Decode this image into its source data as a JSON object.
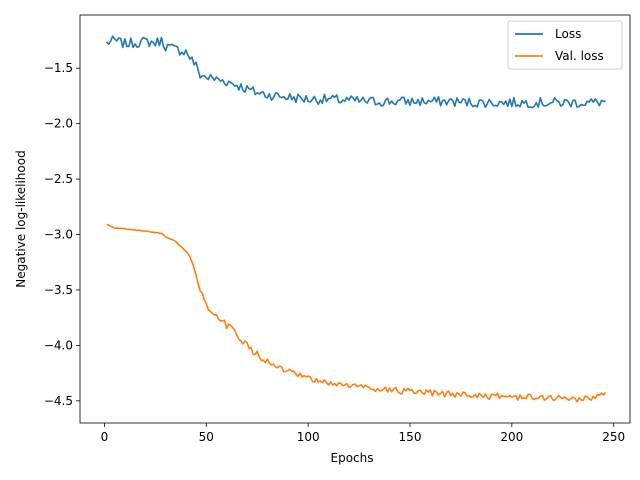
{
  "chart_data": {
    "type": "line",
    "xlabel": "Epochs",
    "ylabel": "Negative log-likelihood",
    "xlim": [
      -12,
      258
    ],
    "ylim": [
      -4.7,
      -1.02
    ],
    "xticks": [
      0,
      50,
      100,
      150,
      200,
      250
    ],
    "yticks": [
      -1.5,
      -2.0,
      -2.5,
      -3.0,
      -3.5,
      -4.0,
      -4.5
    ],
    "ytick_labels": [
      "−1.5",
      "−2.0",
      "−2.5",
      "−3.0",
      "−3.5",
      "−4.0",
      "−4.5"
    ],
    "legend": "top-right",
    "grid": false,
    "series": [
      {
        "name": "Loss",
        "color": "#1f77b4",
        "x": [
          1,
          5,
          10,
          15,
          20,
          25,
          28,
          30,
          35,
          40,
          42,
          45,
          47,
          50,
          55,
          60,
          65,
          70,
          75,
          80,
          85,
          90,
          95,
          100,
          110,
          120,
          130,
          140,
          150,
          160,
          170,
          180,
          190,
          200,
          210,
          220,
          230,
          240,
          246
        ],
        "y": [
          -1.27,
          -1.25,
          -1.28,
          -1.27,
          -1.26,
          -1.27,
          -1.25,
          -1.3,
          -1.33,
          -1.35,
          -1.4,
          -1.48,
          -1.56,
          -1.58,
          -1.6,
          -1.62,
          -1.65,
          -1.69,
          -1.72,
          -1.74,
          -1.75,
          -1.76,
          -1.77,
          -1.78,
          -1.78,
          -1.79,
          -1.8,
          -1.8,
          -1.8,
          -1.8,
          -1.8,
          -1.81,
          -1.81,
          -1.81,
          -1.81,
          -1.81,
          -1.81,
          -1.81,
          -1.8
        ]
      },
      {
        "name": "Val. loss",
        "color": "#ff7f0e",
        "x": [
          1,
          5,
          10,
          15,
          20,
          25,
          28,
          30,
          33,
          36,
          40,
          42,
          44,
          46,
          48,
          50,
          52,
          55,
          58,
          60,
          63,
          65,
          68,
          70,
          72,
          75,
          78,
          80,
          85,
          90,
          95,
          100,
          105,
          110,
          115,
          120,
          125,
          130,
          135,
          140,
          145,
          150,
          155,
          160,
          165,
          170,
          175,
          180,
          185,
          190,
          195,
          200,
          205,
          210,
          215,
          220,
          225,
          230,
          235,
          240,
          243,
          246
        ],
        "y": [
          -2.91,
          -2.94,
          -2.95,
          -2.96,
          -2.97,
          -2.98,
          -2.99,
          -3.02,
          -3.04,
          -3.08,
          -3.15,
          -3.2,
          -3.3,
          -3.45,
          -3.55,
          -3.65,
          -3.72,
          -3.74,
          -3.78,
          -3.82,
          -3.86,
          -3.9,
          -3.96,
          -4.0,
          -4.05,
          -4.08,
          -4.12,
          -4.15,
          -4.2,
          -4.24,
          -4.27,
          -4.3,
          -4.33,
          -4.34,
          -4.35,
          -4.36,
          -4.37,
          -4.38,
          -4.39,
          -4.4,
          -4.41,
          -4.42,
          -4.43,
          -4.43,
          -4.44,
          -4.44,
          -4.44,
          -4.45,
          -4.45,
          -4.46,
          -4.46,
          -4.46,
          -4.47,
          -4.47,
          -4.47,
          -4.47,
          -4.48,
          -4.48,
          -4.48,
          -4.48,
          -4.45,
          -4.44
        ]
      }
    ]
  }
}
